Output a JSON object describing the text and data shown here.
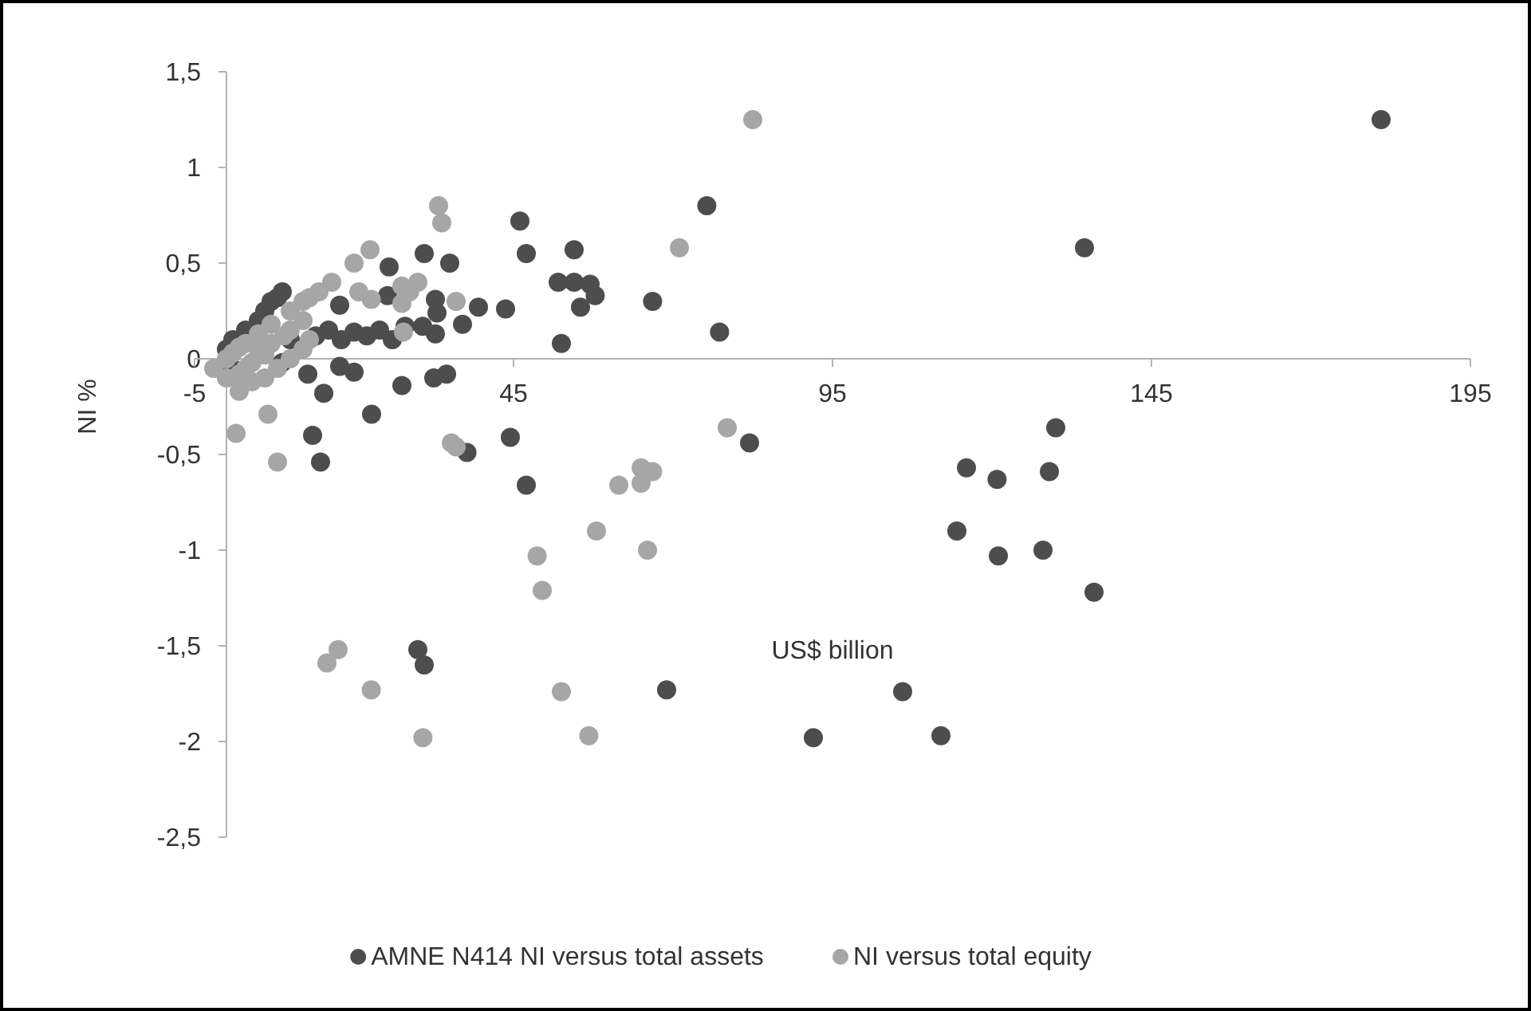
{
  "chart_data": {
    "type": "scatter",
    "xlabel": "US$ billion",
    "ylabel": "NI %",
    "xlim": [
      -5,
      195
    ],
    "ylim": [
      -2.5,
      1.5
    ],
    "xticks": [
      -5,
      45,
      95,
      145,
      195
    ],
    "yticks": [
      {
        "value": -2.5,
        "label": "-2,5"
      },
      -2,
      {
        "value": -1.5,
        "label": "-1,5"
      },
      -1,
      {
        "value": -0.5,
        "label": "-0,5"
      },
      0,
      {
        "value": 0.5,
        "label": "0,5"
      },
      1,
      {
        "value": 1.5,
        "label": "1,5"
      }
    ],
    "grid": false,
    "legend": "bottom",
    "marker": "circle",
    "series": [
      {
        "name": "AMNE N414 NI versus total assets",
        "color": "#4d4d4d",
        "x": [
          181,
          75.3,
          54.5,
          134.5,
          52,
          54.5,
          57,
          57.8,
          55.5,
          66.8,
          77.3,
          52.5,
          82,
          130,
          116,
          129,
          120.8,
          114.5,
          121,
          128,
          136,
          106,
          92,
          112,
          14.75,
          37.7,
          47,
          30,
          31,
          69,
          46,
          47,
          31,
          35,
          25.5,
          39.5,
          43.75,
          32.75,
          33,
          37,
          30.75,
          32.75,
          25.25,
          17.75,
          14,
          16,
          18,
          20,
          22,
          24,
          26,
          8.75,
          8.75,
          12.75,
          17.75,
          20,
          15.25,
          27.5,
          32.5,
          34.5,
          22.75,
          13.5,
          44.5,
          0,
          1,
          3,
          5,
          6,
          7,
          8,
          1,
          10,
          28
        ],
        "values": [
          1.25,
          0.8,
          0.57,
          0.58,
          0.4,
          0.4,
          0.39,
          0.33,
          0.27,
          0.3,
          0.14,
          0.08,
          -0.44,
          -0.36,
          -0.57,
          -0.59,
          -0.63,
          -0.9,
          -1.03,
          -1,
          -1.22,
          -1.74,
          -1.98,
          -1.97,
          -0.54,
          -0.49,
          -0.66,
          -1.52,
          -1.6,
          -1.73,
          0.72,
          0.55,
          0.55,
          0.5,
          0.48,
          0.27,
          0.26,
          0.31,
          0.24,
          0.18,
          0.17,
          0.13,
          0.33,
          0.28,
          0.12,
          0.15,
          0.1,
          0.14,
          0.12,
          0.15,
          0.1,
          0.35,
          -0.02,
          -0.08,
          -0.04,
          -0.07,
          -0.18,
          -0.14,
          -0.1,
          -0.08,
          -0.29,
          -0.4,
          -0.41,
          0.05,
          0.1,
          0.15,
          0.2,
          0.25,
          0.3,
          0.32,
          -0.05,
          0.1,
          0.17
        ]
      },
      {
        "name": "NI versus total equity",
        "color": "#a6a6a6",
        "x": [
          82.5,
          71,
          78.5,
          8,
          36,
          61.5,
          65,
          66.8,
          65,
          58,
          48.7,
          66,
          49.5,
          17.5,
          15.75,
          22.7,
          52.5,
          30.8,
          56.8,
          33.25,
          33.75,
          22.5,
          20,
          16.5,
          20.75,
          22.7,
          27.5,
          30,
          27.5,
          28.7,
          36,
          27.75,
          1.5,
          6.5,
          2,
          35.25,
          0,
          1,
          2,
          3,
          5,
          7,
          10,
          12,
          13,
          14.5,
          -2,
          0,
          2,
          3,
          4,
          5,
          6,
          7,
          9,
          10,
          12,
          4,
          6,
          8,
          10,
          12,
          13
        ],
        "values": [
          1.25,
          0.58,
          -0.36,
          -0.54,
          -0.46,
          -0.66,
          -0.57,
          -0.59,
          -0.65,
          -0.9,
          -1.03,
          -1,
          -1.21,
          -1.52,
          -1.59,
          -1.73,
          -1.74,
          -1.98,
          -1.97,
          0.8,
          0.71,
          0.57,
          0.5,
          0.4,
          0.35,
          0.31,
          0.38,
          0.4,
          0.29,
          0.35,
          0.3,
          0.14,
          -0.39,
          -0.29,
          -0.17,
          -0.44,
          0,
          0.03,
          0.06,
          0.08,
          0.13,
          0.18,
          0.25,
          0.3,
          0.32,
          0.35,
          -0.05,
          -0.1,
          -0.08,
          -0.05,
          -0.02,
          0.05,
          0.02,
          0.08,
          0.12,
          0.15,
          0.2,
          -0.12,
          -0.1,
          -0.05,
          0,
          0.05,
          0.1
        ]
      }
    ]
  }
}
